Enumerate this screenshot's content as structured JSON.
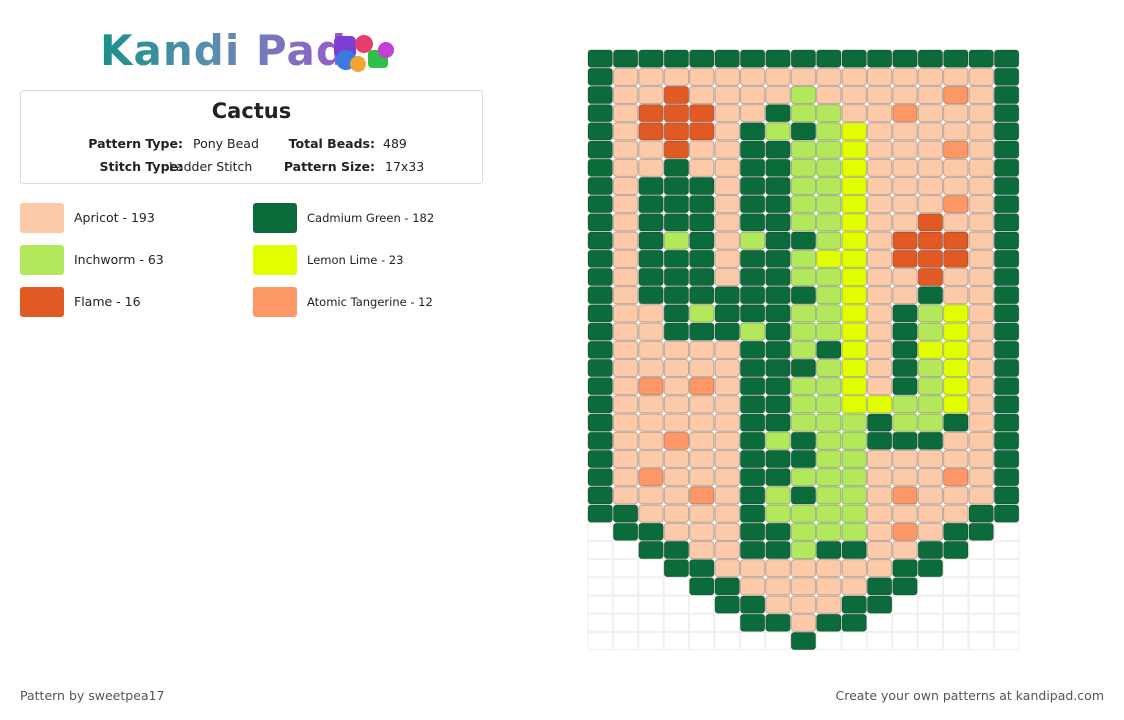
{
  "header": {
    "logo": "Kandi Pad"
  },
  "pattern": {
    "title": "Cactus",
    "type_label": "Pattern Type:",
    "type": "Pony Bead",
    "beads_label": "Total Beads:",
    "beads": "489",
    "stitch_label": "Stitch Type:",
    "stitch": "Ladder Stitch",
    "size_label": "Pattern Size:",
    "size": "17x33"
  },
  "legend": [
    {
      "label": "Apricot - 193",
      "color": "#fccaa9"
    },
    {
      "label": "Cadmium Green - 182",
      "color": "#0c6b3b"
    },
    {
      "label": "Inchworm - 63",
      "color": "#b3e85d"
    },
    {
      "label": "Lemon Lime - 23",
      "color": "#e2ff00"
    },
    {
      "label": "Flame - 16",
      "color": "#e15a24"
    },
    {
      "label": "Atomic Tangerine - 12",
      "color": "#fd9866"
    }
  ],
  "footer": {
    "author": "Pattern by sweetpea17",
    "cta": "Create your own patterns at kandipad.com"
  }
}
